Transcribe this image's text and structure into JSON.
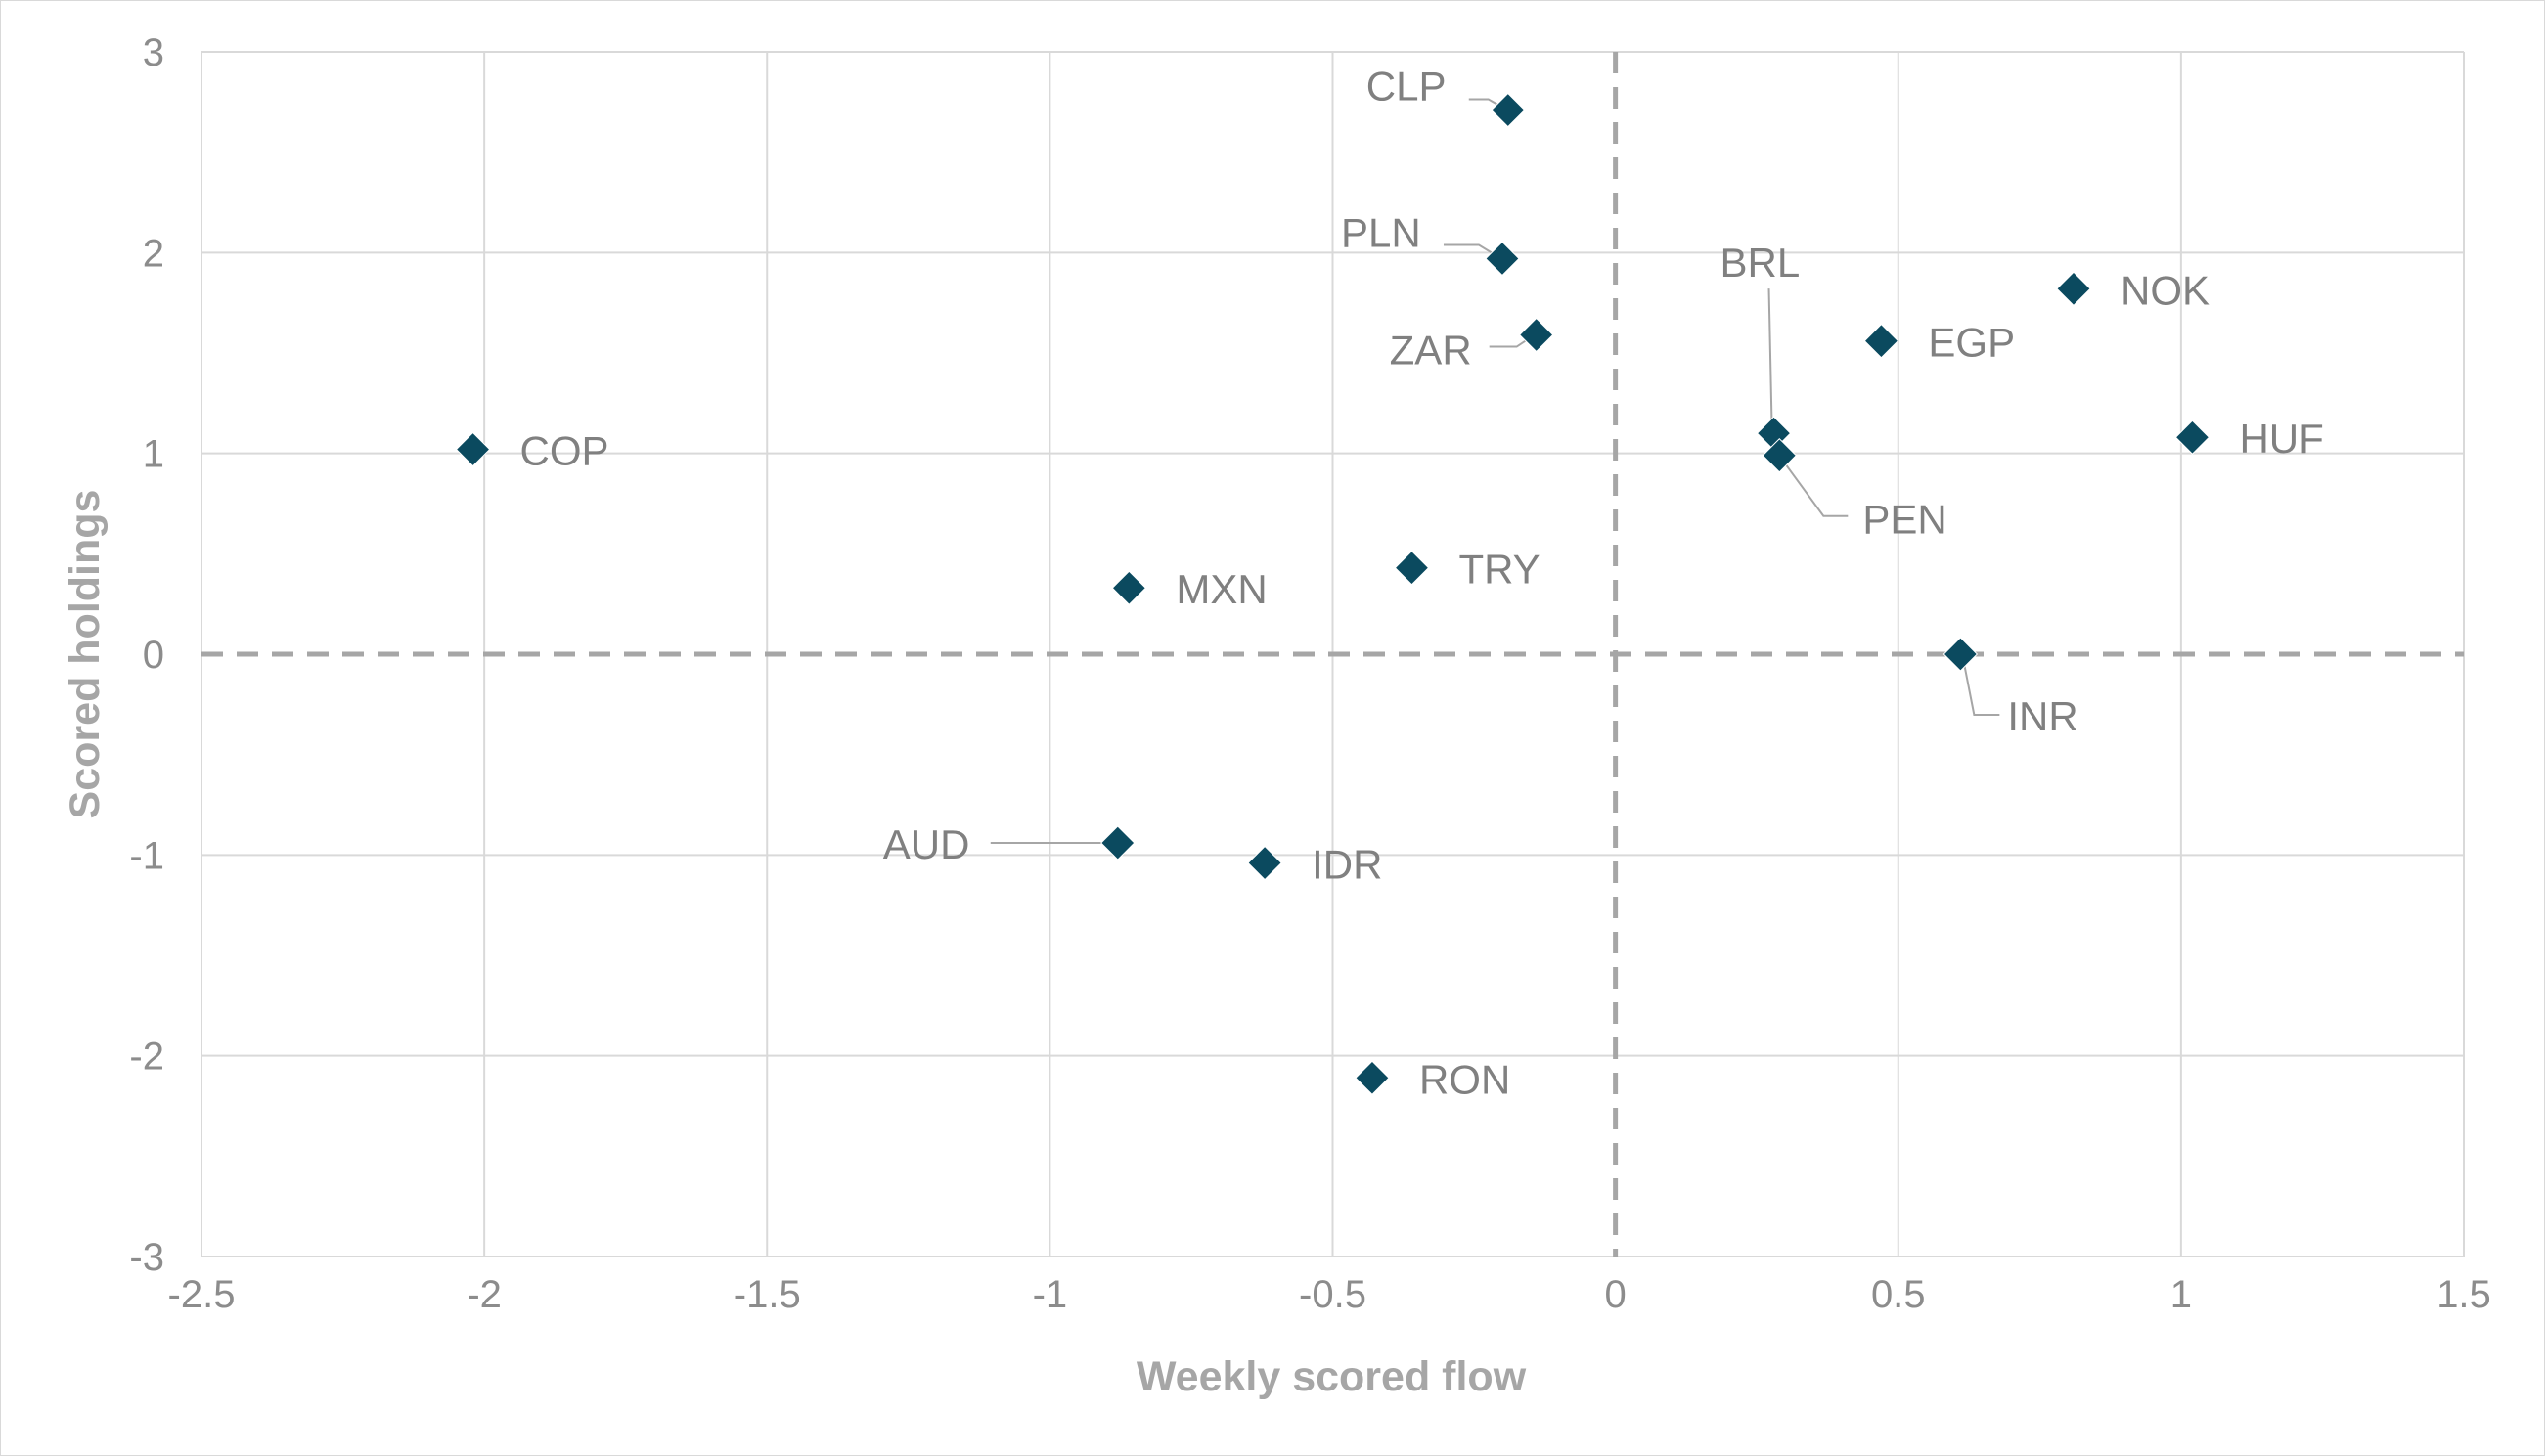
{
  "chart_data": {
    "type": "scatter",
    "xlabel": "Weekly scored flow",
    "ylabel": "Scored holdings",
    "xlim": [
      -2.5,
      1.5
    ],
    "ylim": [
      -3,
      3
    ],
    "x_ticks": [
      "-2.5",
      "-2",
      "-1.5",
      "-1",
      "-0.5",
      "0",
      "0.5",
      "1",
      "1.5"
    ],
    "y_ticks": [
      "3",
      "2",
      "1",
      "0",
      "-1",
      "-2",
      "-3"
    ],
    "grid": true,
    "zero_lines": "dashed",
    "marker": "diamond",
    "marker_color": "#0b4a5f",
    "points": [
      {
        "label": "CLP",
        "x": -0.19,
        "y": 2.71
      },
      {
        "label": "PLN",
        "x": -0.2,
        "y": 1.97
      },
      {
        "label": "ZAR",
        "x": -0.14,
        "y": 1.59
      },
      {
        "label": "BRL",
        "x": 0.28,
        "y": 1.1
      },
      {
        "label": "NOK",
        "x": 0.81,
        "y": 1.82
      },
      {
        "label": "EGP",
        "x": 0.47,
        "y": 1.56
      },
      {
        "label": "HUF",
        "x": 1.02,
        "y": 1.08
      },
      {
        "label": "COP",
        "x": -2.02,
        "y": 1.02
      },
      {
        "label": "PEN",
        "x": 0.29,
        "y": 0.99
      },
      {
        "label": "TRY",
        "x": -0.36,
        "y": 0.43
      },
      {
        "label": "MXN",
        "x": -0.86,
        "y": 0.33
      },
      {
        "label": "INR",
        "x": 0.61,
        "y": 0.0
      },
      {
        "label": "AUD",
        "x": -0.88,
        "y": -0.94
      },
      {
        "label": "IDR",
        "x": -0.62,
        "y": -1.04
      },
      {
        "label": "RON",
        "x": -0.43,
        "y": -2.11
      }
    ]
  }
}
